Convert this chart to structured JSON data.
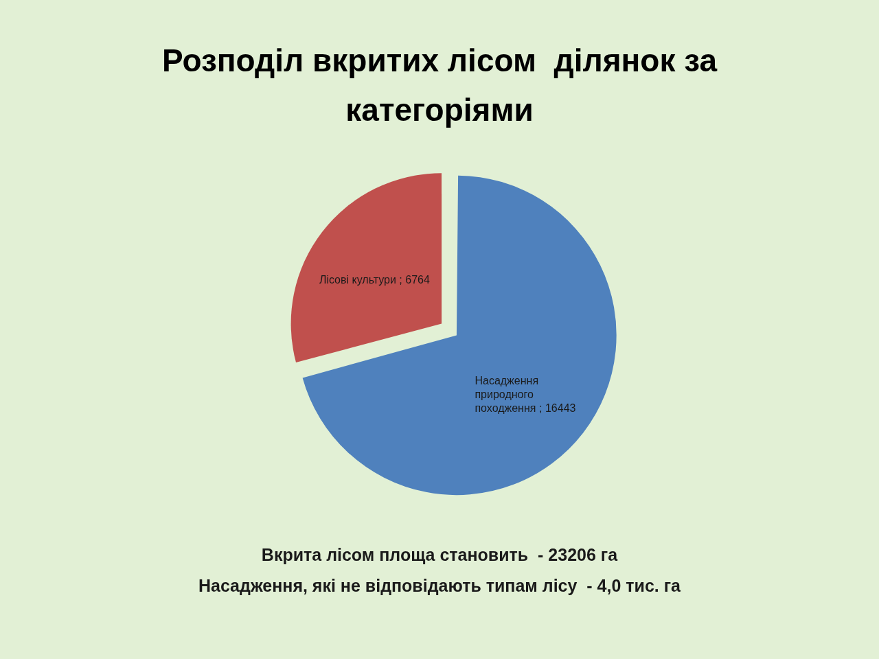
{
  "chart_data": {
    "type": "pie",
    "title": "Розподіл вкритих лісом  ділянок за категоріями",
    "categories": [
      "Насадження природного походження",
      "Лісові культури "
    ],
    "values": [
      16443,
      6764
    ],
    "colors": [
      "#4f81bd",
      "#c0504d"
    ],
    "value_labels": [
      "; 16443",
      "; 6764"
    ],
    "legend": false,
    "annotations": [
      "Вкрита лісом площа становить  - 23206 га",
      "Насадження, які не відповідають типам лісу  - 4,0 тис. га"
    ]
  }
}
